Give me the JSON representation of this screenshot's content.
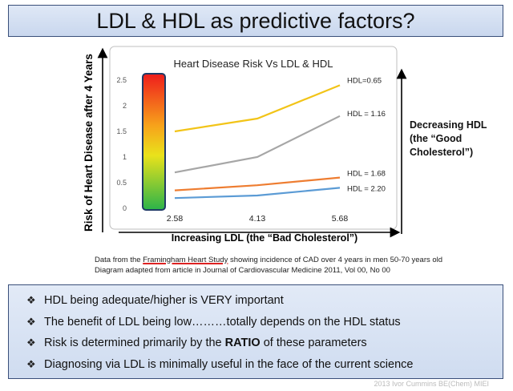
{
  "slide": {
    "title": "LDL & HDL as predictive factors?",
    "y_axis_title": "Risk of Heart Disease after 4 Years",
    "side_note_lines": [
      "Decreasing HDL",
      "(the “Good",
      "Cholesterol”)"
    ],
    "x_axis_title": "Increasing LDL (the “Bad Cholesterol”)",
    "source_line1_pre": "Data from the ",
    "source_line1_link": "Framingham Heart Study",
    "source_line1_post": " showing incidence of CAD over 4 years in men 50-70 years old",
    "source_line2": "Diagram adapted from article in Journal of Cardiovascular Medicine 2011, Vol 00, No 00",
    "bullets": [
      {
        "pre": "HDL being adequate/higher is VERY important",
        "bold": "",
        "post": ""
      },
      {
        "pre": "The benefit of LDL being low………totally depends on the HDL status",
        "bold": "",
        "post": ""
      },
      {
        "pre": "Risk is determined primarily by the ",
        "bold": "RATIO",
        "post": " of these parameters"
      },
      {
        "pre": "Diagnosing via LDL is minimally useful in the face of the current science",
        "bold": "",
        "post": ""
      }
    ],
    "bullet_mark": "❖",
    "copyright": "2013 Ivor Cummins BE(Chem) MIEI"
  },
  "chart_data": {
    "type": "line",
    "title": "Heart Disease Risk Vs LDL & HDL",
    "categories": [
      "2.58",
      "4.13",
      "5.68"
    ],
    "ylim": [
      0,
      2.5
    ],
    "yticks": [
      "0",
      "0.5",
      "1",
      "1.5",
      "2",
      "2.5"
    ],
    "series": [
      {
        "name": "HDL=0.65",
        "values": [
          1.5,
          1.75,
          2.4
        ],
        "color": "#f2c418"
      },
      {
        "name": "HDL = 1.16",
        "values": [
          0.7,
          1.0,
          1.8
        ],
        "color": "#a6a6a6"
      },
      {
        "name": "HDL = 1.68",
        "values": [
          0.35,
          0.45,
          0.6
        ],
        "color": "#ee7d31"
      },
      {
        "name": "HDL = 2.20",
        "values": [
          0.2,
          0.25,
          0.4
        ],
        "color": "#5b9bd5"
      }
    ],
    "gradient_colors": [
      "#ee1c1c",
      "#f7a21b",
      "#e9e21b",
      "#2bb34a"
    ]
  }
}
